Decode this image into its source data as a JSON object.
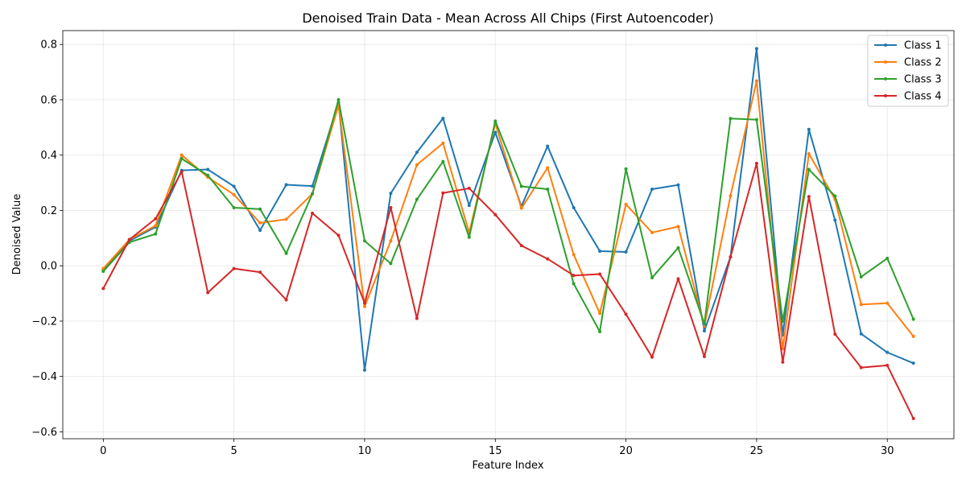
{
  "chart_data": {
    "type": "line",
    "title": "Denoised Train Data - Mean Across All Chips (First Autoencoder)",
    "xlabel": "Feature Index",
    "ylabel": "Denoised Value",
    "xlim": [
      -1.55,
      32.55
    ],
    "ylim": [
      -0.625,
      0.85
    ],
    "xticks": [
      0,
      5,
      10,
      15,
      20,
      25,
      30
    ],
    "yticks": [
      -0.6,
      -0.4,
      -0.2,
      0.0,
      0.2,
      0.4,
      0.6,
      0.8
    ],
    "grid": true,
    "legend_position": "top-right",
    "x": [
      0,
      1,
      2,
      3,
      4,
      5,
      6,
      7,
      8,
      9,
      10,
      11,
      12,
      13,
      14,
      15,
      16,
      17,
      18,
      19,
      20,
      21,
      22,
      23,
      24,
      25,
      26,
      27,
      28,
      29,
      30,
      31
    ],
    "series": [
      {
        "name": "Class 1",
        "color": "#1f77b4",
        "values": [
          -0.015,
          0.09,
          0.14,
          0.345,
          0.348,
          0.287,
          0.128,
          0.293,
          0.288,
          0.59,
          -0.377,
          0.262,
          0.41,
          0.533,
          0.218,
          0.482,
          0.215,
          0.432,
          0.21,
          0.053,
          0.05,
          0.277,
          0.292,
          -0.235,
          0.032,
          0.785,
          -0.25,
          0.493,
          0.165,
          -0.246,
          -0.313,
          -0.352
        ]
      },
      {
        "name": "Class 2",
        "color": "#ff7f0e",
        "values": [
          -0.01,
          0.095,
          0.145,
          0.4,
          0.32,
          0.257,
          0.155,
          0.168,
          0.26,
          0.58,
          -0.147,
          0.09,
          0.365,
          0.443,
          0.12,
          0.515,
          0.208,
          0.354,
          0.04,
          -0.172,
          0.222,
          0.12,
          0.142,
          -0.218,
          0.253,
          0.668,
          -0.3,
          0.405,
          0.24,
          -0.14,
          -0.135,
          -0.255
        ]
      },
      {
        "name": "Class 3",
        "color": "#2ca02c",
        "values": [
          -0.02,
          0.085,
          0.115,
          0.387,
          0.327,
          0.21,
          0.205,
          0.045,
          0.26,
          0.6,
          0.09,
          0.008,
          0.24,
          0.377,
          0.103,
          0.523,
          0.287,
          0.277,
          -0.065,
          -0.238,
          0.35,
          -0.043,
          0.065,
          -0.21,
          0.532,
          0.528,
          -0.2,
          0.348,
          0.252,
          -0.04,
          0.027,
          -0.193
        ]
      },
      {
        "name": "Class 4",
        "color": "#d62728",
        "values": [
          -0.082,
          0.095,
          0.17,
          0.34,
          -0.097,
          -0.01,
          -0.023,
          -0.123,
          0.19,
          0.11,
          -0.135,
          0.21,
          -0.19,
          0.263,
          0.28,
          0.185,
          0.073,
          0.025,
          -0.035,
          -0.03,
          -0.175,
          -0.33,
          -0.047,
          -0.328,
          0.032,
          0.37,
          -0.348,
          0.25,
          -0.247,
          -0.368,
          -0.36,
          -0.552
        ]
      }
    ]
  }
}
